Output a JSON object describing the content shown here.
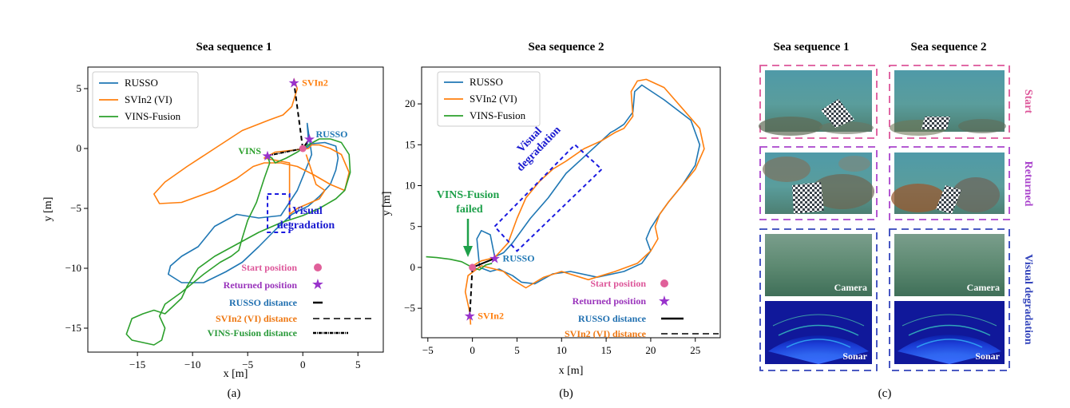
{
  "chart_data": [
    {
      "type": "line",
      "panel": "(a)",
      "title": "Sea sequence 1",
      "xlabel": "x [m]",
      "ylabel": "y [m]",
      "xlim": [
        -19.5,
        7.3
      ],
      "ylim": [
        -17,
        6.8
      ],
      "xticks": [
        -15,
        -10,
        -5,
        0,
        5
      ],
      "yticks": [
        5,
        0,
        -5,
        -10,
        -15
      ],
      "series": [
        {
          "name": "RUSSO",
          "color": "#1f77b4",
          "x": [
            0.3,
            0.5,
            0.4,
            0.8,
            0.6,
            -0.5,
            -2,
            -4,
            -6,
            -8,
            -9.5,
            -11,
            -12,
            -12.2,
            -11,
            -9,
            -7,
            -5.5,
            -4,
            -2.5,
            -1,
            0.5,
            1.5,
            2.5,
            3,
            3.2,
            3,
            2,
            0.8,
            0.3
          ],
          "y": [
            0.0,
            0.8,
            2.1,
            -0.5,
            -1.0,
            -3.5,
            -5.6,
            -5.8,
            -5.5,
            -6.5,
            -8.2,
            -9.0,
            -9.8,
            -10.5,
            -11.2,
            -11.2,
            -10.3,
            -9.5,
            -8.2,
            -6.8,
            -5.5,
            -4.8,
            -4.0,
            -3.0,
            -1.8,
            -0.8,
            0.2,
            0.5,
            0.4,
            0.0
          ]
        },
        {
          "name": "SVIn2 (VI)",
          "color": "#ff7f0e",
          "x": [
            -0.8,
            -0.8,
            -0.5,
            -1.0,
            -1.8,
            -3.0,
            -5.5,
            -8,
            -10.5,
            -12.5,
            -13.5,
            -13.0,
            -11,
            -8,
            -6,
            -4.5,
            -3.5,
            -2,
            -0.5,
            1.0,
            2.5,
            3.8,
            4.2,
            3.5,
            2.5,
            1.5,
            1.0,
            0.8,
            0.5,
            -2.5,
            -3.5,
            -1.2,
            -1.2,
            -0.5,
            0.5,
            1.5,
            2.0,
            1.2,
            0.3
          ],
          "y": [
            5.5,
            5.8,
            5.0,
            3.5,
            2.8,
            2.4,
            1.5,
            0.0,
            -1.5,
            -2.8,
            -3.8,
            -4.6,
            -4.5,
            -3.5,
            -2.5,
            -1.5,
            -1.2,
            -1.2,
            -1.5,
            -2.2,
            -3.0,
            -3.5,
            -2.0,
            -0.5,
            0.0,
            0.3,
            0.3,
            0.3,
            0.0,
            -0.3,
            -0.8,
            -1.2,
            -5.5,
            -5.0,
            -4.6,
            -4.2,
            -3.5,
            -3.0,
            -0.5
          ]
        },
        {
          "name": "VINS-Fusion",
          "color": "#2ca02c",
          "x": [
            -3.2,
            -2.8,
            -2.5,
            -1.5,
            -0.5,
            0.5,
            1.5,
            2.5,
            3.5,
            4.2,
            4.3,
            3.8,
            3.0,
            1.5,
            0,
            -2,
            -4,
            -6,
            -8,
            -9.5,
            -10.5,
            -11,
            -11.8,
            -12.5,
            -13.5,
            -14.5,
            -15.5,
            -16,
            -15.5,
            -14.5,
            -13.5,
            -12.8,
            -12.5,
            -13,
            -12.5,
            -11,
            -9,
            -7.5,
            -6.5,
            -5.8,
            -5.5,
            -5,
            -4.2,
            -3.5,
            -3,
            -3.2
          ],
          "y": [
            -0.6,
            -0.8,
            -1.2,
            -0.8,
            -0.3,
            0.3,
            0.8,
            0.8,
            0.5,
            -0.5,
            -2.0,
            -3.5,
            -4.2,
            -5.0,
            -5.6,
            -6.2,
            -7.0,
            -8.0,
            -9.0,
            -10.0,
            -11.5,
            -12.5,
            -13.2,
            -13.8,
            -13.5,
            -13.8,
            -14.2,
            -15.5,
            -16.0,
            -16.2,
            -16.4,
            -16.0,
            -15.0,
            -14.0,
            -13.0,
            -12.0,
            -10.5,
            -9.5,
            -9.0,
            -8.5,
            -7.5,
            -6.0,
            -4.5,
            -2.5,
            -1.2,
            -0.6
          ]
        }
      ],
      "markers": {
        "start": {
          "x": 0.0,
          "y": 0.0
        },
        "returned": [
          {
            "label": "SVIn2",
            "x": -0.8,
            "y": 5.5,
            "color": "#ff7f0e"
          },
          {
            "label": "RUSSO",
            "x": 0.6,
            "y": 0.8,
            "color": "#1f77b4"
          },
          {
            "label": "VINS",
            "x": -3.2,
            "y": -0.6,
            "color": "#2ca02c"
          }
        ]
      },
      "degradation_box": {
        "x0": -3.2,
        "x1": -1.2,
        "y0": -7.0,
        "y1": -3.8
      },
      "annotation": [
        "Visual",
        "degradation"
      ],
      "legend": [
        "Start position",
        "Returned position",
        "RUSSO distance",
        "SVIn2 (VI) distance",
        "VINS-Fusion distance"
      ],
      "caption": "(a)"
    },
    {
      "type": "line",
      "panel": "(b)",
      "title": "Sea sequence 2",
      "xlabel": "x [m]",
      "ylabel": "y [m]",
      "xlim": [
        -5.7,
        27.8
      ],
      "ylim": [
        -8.6,
        24.5
      ],
      "xticks": [
        -5,
        0,
        5,
        10,
        15,
        20,
        25
      ],
      "yticks": [
        20,
        15,
        10,
        5,
        0,
        -5
      ],
      "series": [
        {
          "name": "RUSSO",
          "color": "#1f77b4",
          "x": [
            2.5,
            3.5,
            4.5,
            6.5,
            8.5,
            10.5,
            12.5,
            14.5,
            15.5,
            16.0,
            17.0,
            18.0,
            18.2,
            19.0,
            21.5,
            24.5,
            25.5,
            25.0,
            23.5,
            22.0,
            21.0,
            20.0,
            19.5,
            20.0,
            19.0,
            17.0,
            14.0,
            11.0,
            9.0,
            7.0,
            5.5,
            4.5,
            3.5,
            3.0,
            2.0,
            0.8,
            0.5,
            1.0,
            2.0,
            2.5
          ],
          "y": [
            1.3,
            1.8,
            3.0,
            6.0,
            8.5,
            11.5,
            13.5,
            15.5,
            16.5,
            16.8,
            17.5,
            19.0,
            21.5,
            22.3,
            20.5,
            18.0,
            15.0,
            12.5,
            10.0,
            8.0,
            6.5,
            4.8,
            3.5,
            2.0,
            0.5,
            -0.5,
            -1.2,
            -0.5,
            -0.8,
            -2.0,
            -1.8,
            -1.0,
            -0.5,
            -0.2,
            -0.5,
            0.0,
            3.5,
            4.5,
            4.0,
            1.3
          ]
        },
        {
          "name": "SVIn2 (VI)",
          "color": "#ff7f0e",
          "x": [
            0,
            0.2,
            1.0,
            2.5,
            4.0,
            5.0,
            6.0,
            7.5,
            9.0,
            10.5,
            12.5,
            14.5,
            16.0,
            17.0,
            18.0,
            17.8,
            18.5,
            19.5,
            21.5,
            23.5,
            25.5,
            26.0,
            25.0,
            23.5,
            22.0,
            21.0,
            20.5,
            20.8,
            20.0,
            18.5,
            16.0,
            13.0,
            10.0,
            8.0,
            6.0,
            4.5,
            3.5,
            2.5,
            1.0,
            -0.5,
            -0.8,
            -0.5,
            -0.3,
            -0.2
          ],
          "y": [
            0,
            0.3,
            0.8,
            1.2,
            3.0,
            6.0,
            8.5,
            10.5,
            12.0,
            13.0,
            14.5,
            15.5,
            16.5,
            17.0,
            18.5,
            21.5,
            22.8,
            23.0,
            22.0,
            19.5,
            17.0,
            14.5,
            12.0,
            10.0,
            8.0,
            6.5,
            5.0,
            3.5,
            2.0,
            0.5,
            -0.5,
            -1.5,
            -0.5,
            -1.2,
            -2.5,
            -1.5,
            -0.5,
            -0.2,
            0.2,
            -1.0,
            -3.0,
            -4.5,
            -5.5,
            -7.0
          ]
        },
        {
          "name": "VINS-Fusion",
          "color": "#2ca02c",
          "x": [
            -5.2,
            -4.0,
            -2.5,
            -1.2,
            0.0,
            0.8,
            1.5,
            2.2
          ],
          "y": [
            1.3,
            1.2,
            1.0,
            0.7,
            0.0,
            -0.3,
            0.3,
            0.5
          ]
        }
      ],
      "markers": {
        "start": {
          "x": 0.0,
          "y": 0.0
        },
        "returned": [
          {
            "label": "RUSSO",
            "x": 2.5,
            "y": 1.1,
            "color": "#1f77b4"
          },
          {
            "label": "SVIn2",
            "x": -0.3,
            "y": -5.9,
            "color": "#ff7f0e"
          }
        ]
      },
      "degradation_box": {
        "corners": [
          [
            2.5,
            5.0
          ],
          [
            11.5,
            15.0
          ],
          [
            14.5,
            12.0
          ],
          [
            5.0,
            2.0
          ]
        ]
      },
      "annotation": [
        "Visual",
        "degradation"
      ],
      "failure_label": [
        "VINS-Fusion",
        "failed"
      ],
      "legend": [
        "Start position",
        "Returned position",
        "RUSSO distance",
        "SVIn2 (VI) distance"
      ],
      "caption": "(b)"
    }
  ],
  "panel_c": {
    "caption": "(c)",
    "columns": [
      "Sea sequence 1",
      "Sea sequence 2"
    ],
    "rows": [
      {
        "label": "Start",
        "color": "#dd5599"
      },
      {
        "label": "Returned",
        "color": "#aa44cc"
      },
      {
        "label": "Visual degradation",
        "color": "#3344bb"
      }
    ],
    "camera_label": "Camera",
    "sonar_label": "Sonar"
  }
}
